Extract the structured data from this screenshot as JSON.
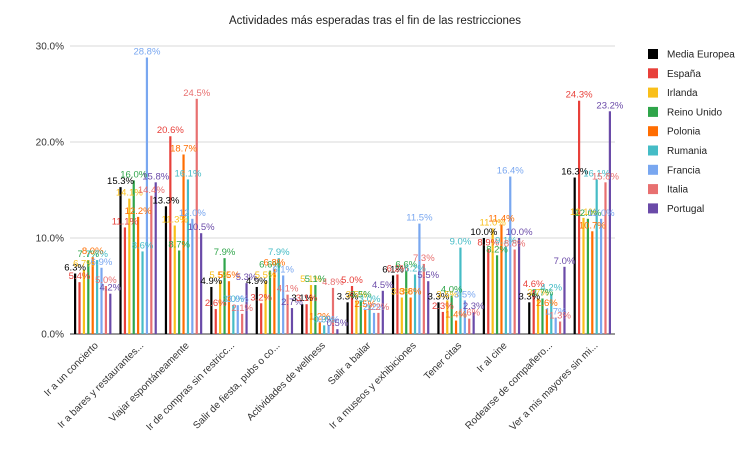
{
  "chart_data": {
    "type": "bar",
    "title": "Actividades más esperadas tras el fin de las restricciones",
    "xlabel": "",
    "ylabel": "",
    "ylim": [
      0,
      30
    ],
    "yticks": [
      "0.0%",
      "10.0%",
      "20.0%",
      "30.0%"
    ],
    "ytick_values": [
      0,
      10,
      20,
      30
    ],
    "grid": true,
    "legend_position": "right",
    "categories": [
      "Ir a un concierto",
      "Ir a bares y restaurantes...",
      "Viajar espontáneamente",
      "Ir de compras sin restricc...",
      "Salir de fiesta, pubs o co...",
      "Actividades de wellness",
      "Salir a bailar",
      "Ir a museos y exhibiciones",
      "Tener citas",
      "Ir al cine",
      "Rodearse de compañero...",
      "Ver a mis mayores sin mi..."
    ],
    "series": [
      {
        "name": "Media Europea",
        "color": "#000000",
        "values": [
          6.3,
          15.3,
          13.3,
          4.9,
          4.9,
          3.1,
          3.3,
          6.1,
          3.3,
          10.0,
          3.3,
          16.3
        ]
      },
      {
        "name": "España",
        "color": "#e8403a",
        "values": [
          5.4,
          11.1,
          20.6,
          2.6,
          3.2,
          3.1,
          5.0,
          6.2,
          2.3,
          8.9,
          4.6,
          24.3
        ]
      },
      {
        "name": "Irlanda",
        "color": "#f9bf1a",
        "values": [
          6.7,
          14.1,
          11.3,
          5.5,
          5.5,
          5.1,
          3.5,
          3.8,
          3.5,
          11.0,
          3.7,
          12.1
        ]
      },
      {
        "name": "Reino Unido",
        "color": "#2fa54a",
        "values": [
          7.7,
          16.0,
          8.7,
          7.9,
          6.6,
          5.1,
          3.5,
          6.6,
          4.0,
          8.2,
          3.7,
          12.0
        ]
      },
      {
        "name": "Polonia",
        "color": "#ff6d01",
        "values": [
          8.0,
          12.2,
          18.7,
          5.5,
          6.8,
          1.2,
          2.5,
          3.8,
          1.4,
          11.4,
          2.6,
          10.7
        ]
      },
      {
        "name": "Rumania",
        "color": "#45bcc6",
        "values": [
          7.7,
          8.6,
          16.1,
          3.0,
          7.9,
          0.9,
          3.0,
          6.2,
          9.0,
          9.1,
          4.2,
          16.1
        ]
      },
      {
        "name": "Francia",
        "color": "#79a7f0",
        "values": [
          6.9,
          28.8,
          12.0,
          3.0,
          6.1,
          0.9,
          2.2,
          11.5,
          3.5,
          16.4,
          1.7,
          12.0
        ]
      },
      {
        "name": "Italia",
        "color": "#e87070",
        "values": [
          5.0,
          14.4,
          24.5,
          2.1,
          4.1,
          4.8,
          2.2,
          7.3,
          1.6,
          8.8,
          1.3,
          15.8
        ]
      },
      {
        "name": "Portugal",
        "color": "#6a4aa8",
        "values": [
          4.2,
          15.8,
          10.5,
          5.3,
          2.7,
          0.5,
          4.5,
          5.5,
          2.3,
          10.0,
          7.0,
          23.2
        ]
      }
    ]
  }
}
